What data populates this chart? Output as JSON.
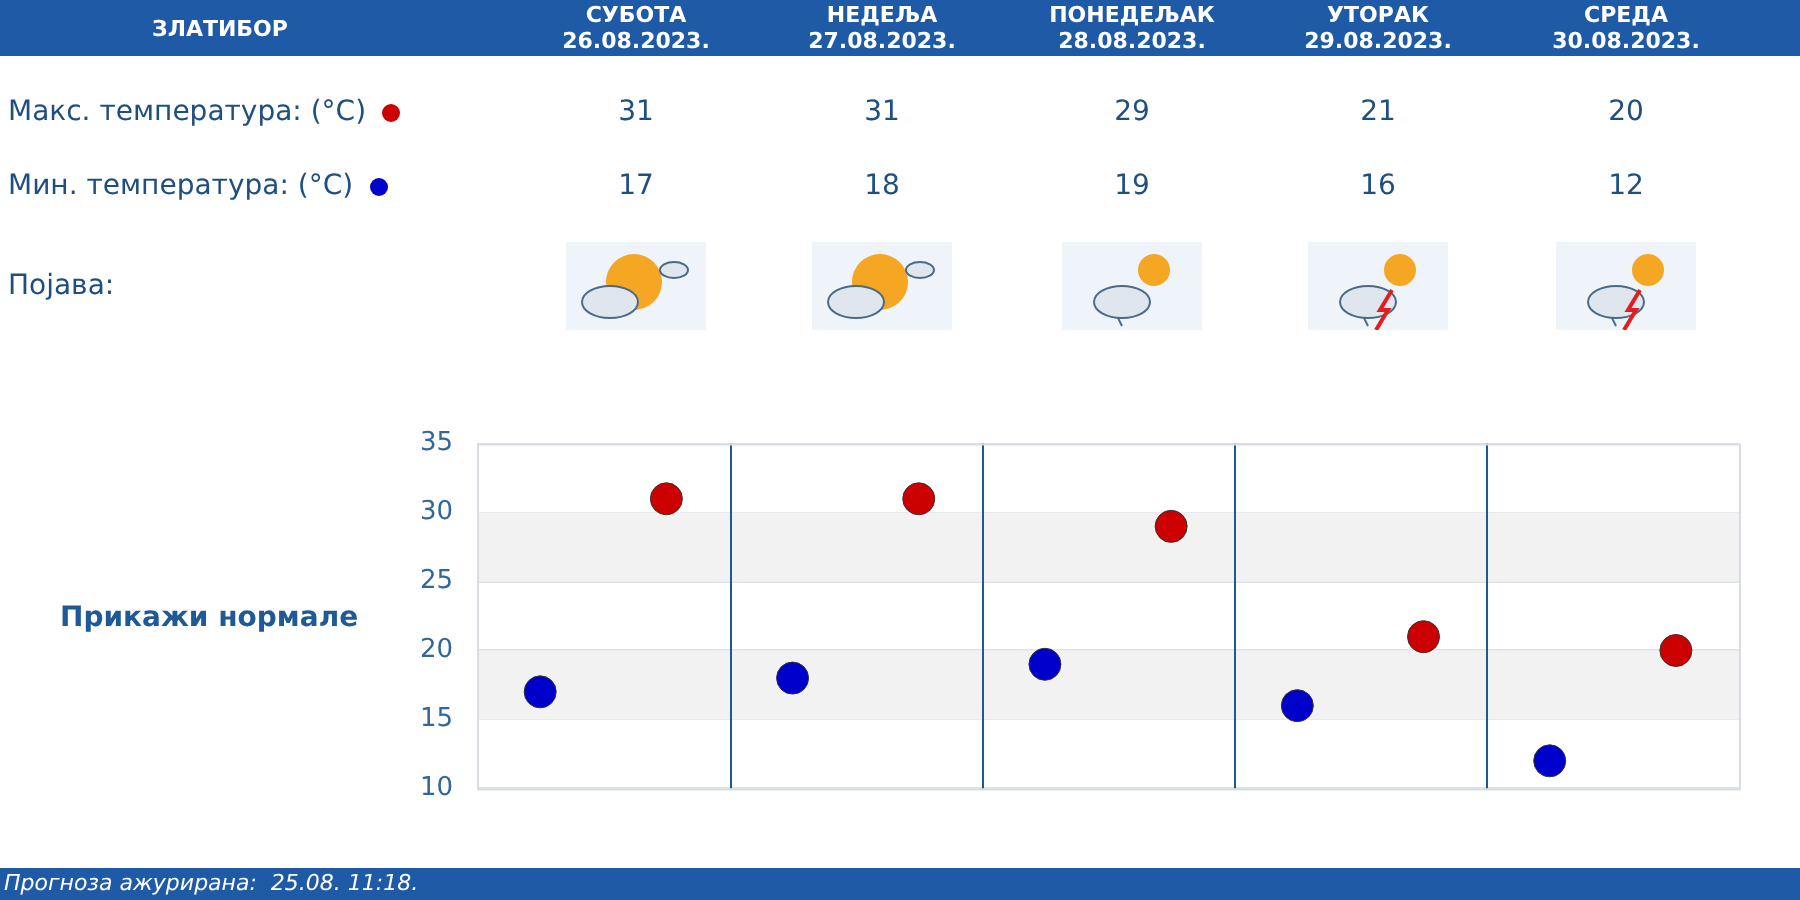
{
  "chart_data": {
    "type": "scatter",
    "title": "ЗЛАТИБОР",
    "categories": [
      null,
      null,
      null,
      null,
      null
    ],
    "series": [
      {
        "name": "Макс. температура: (°C)",
        "color": "#cc0000",
        "values": [
          31,
          31,
          29,
          21,
          20
        ]
      },
      {
        "name": "Мин. температура: (°C)",
        "color": "#0000cc",
        "values": [
          17,
          18,
          19,
          16,
          12
        ]
      }
    ],
    "ylim": [
      10,
      35
    ],
    "yticks": [
      10,
      15,
      20,
      25,
      30,
      35
    ],
    "grid": "y",
    "legend": "top left",
    "data_labels": true,
    "marker": "circle",
    "bands": [
      {
        "axis": "y",
        "from": 15,
        "to": 20,
        "color": "#f2f2f2"
      },
      {
        "axis": "y",
        "from": 25,
        "to": 30,
        "color": "#f2f2f2"
      }
    ],
    "annotations": [
      "СУБОТА 26.08.2023.",
      "НЕДЕЉА 27.08.2023.",
      "ПОНЕДЕЉАК 28.08.2023.",
      "УТОРАК 29.08.2023.",
      "СРЕДА 30.08.2023.",
      "Појава:",
      "Прикажи нормале",
      "Прогноза ажурирана:  25.08. 11:18."
    ]
  }
}
